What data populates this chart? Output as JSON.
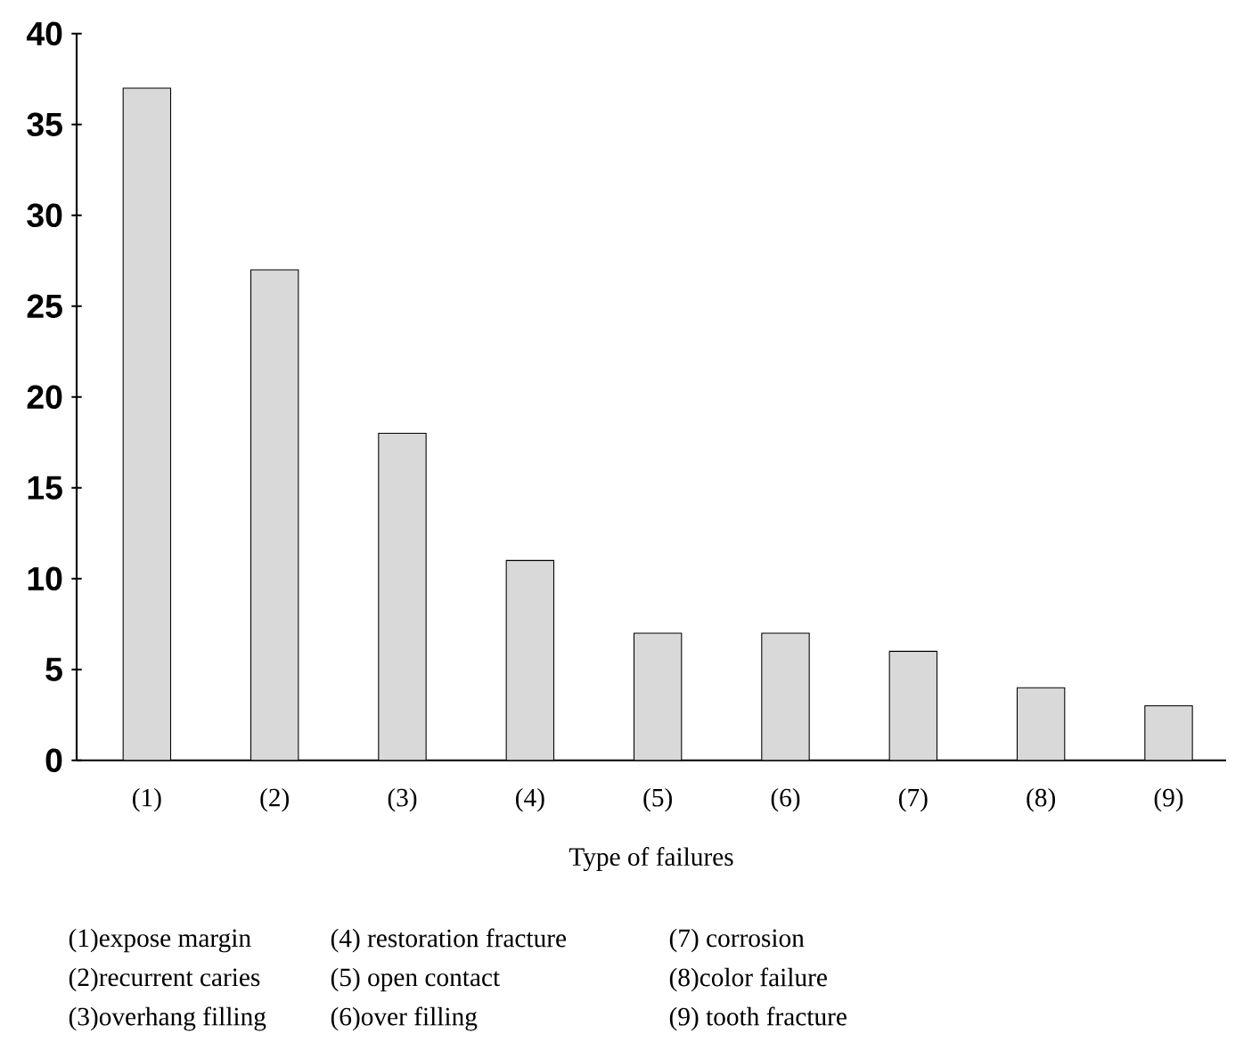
{
  "chart_data": {
    "type": "bar",
    "categories": [
      "(1)",
      "(2)",
      "(3)",
      "(4)",
      "(5)",
      "(6)",
      "(7)",
      "(8)",
      "(9)"
    ],
    "values": [
      37,
      27,
      18,
      11,
      7,
      7,
      6,
      4,
      3
    ],
    "color": "#d9d9d9",
    "ylim": [
      0,
      40
    ],
    "yticks": [
      0,
      5,
      10,
      15,
      20,
      25,
      30,
      35,
      40
    ],
    "xlabel": "Type of failures",
    "annotations": [
      "(1)expose margin",
      "(2)recurrent caries",
      "(3)overhang filling",
      "(4) restoration fracture",
      "(5) open contact",
      "(6)over filling",
      "(7) corrosion",
      "(8)color failure",
      "(9) tooth fracture"
    ]
  }
}
